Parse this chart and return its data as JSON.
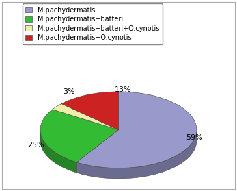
{
  "labels": [
    "M.pachydermatis",
    "M.pachydermatis+batteri",
    "M.pachydermatis+batteri+O.cynotis",
    "M.pachydermatis+O.cynotis"
  ],
  "values": [
    59,
    25,
    3,
    13
  ],
  "colors": [
    "#9999cc",
    "#33bb33",
    "#eeeeaa",
    "#cc2222"
  ],
  "pct_labels": [
    "59%",
    "25%",
    "3%",
    "13%"
  ],
  "figsize": [
    3.47,
    2.79
  ],
  "dpi": 100,
  "background_color": "#ffffff",
  "font_size": 8,
  "legend_font_size": 7
}
